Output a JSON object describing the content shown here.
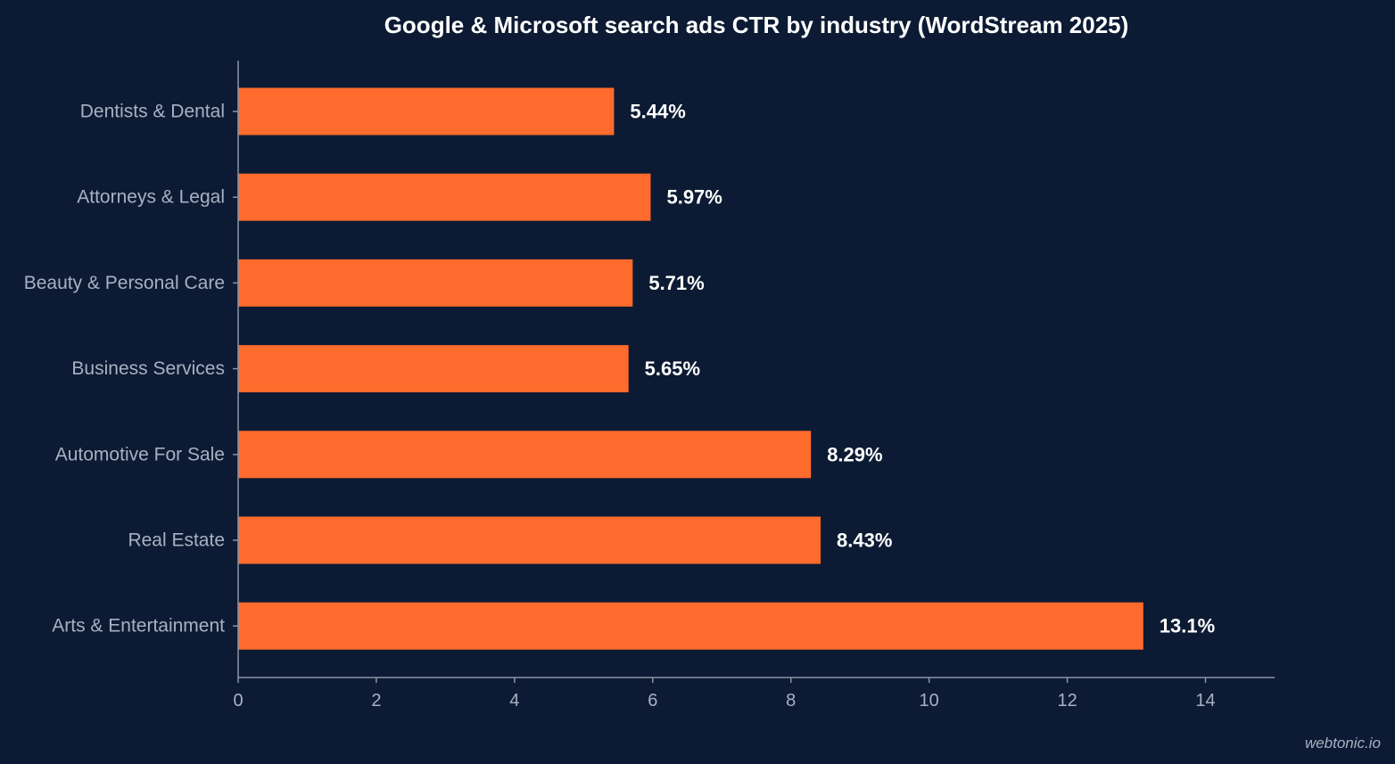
{
  "chart_data": {
    "type": "bar",
    "orientation": "horizontal",
    "title": "Google & Microsoft search ads CTR by industry (WordStream 2025)",
    "xlabel": "",
    "ylabel": "",
    "categories": [
      "Dentists & Dental",
      "Attorneys & Legal",
      "Beauty & Personal Care",
      "Business Services",
      "Automotive For Sale",
      "Real Estate",
      "Arts & Entertainment"
    ],
    "values": [
      5.44,
      5.97,
      5.71,
      5.65,
      8.29,
      8.43,
      13.1
    ],
    "value_labels": [
      "5.44%",
      "5.97%",
      "5.71%",
      "5.65%",
      "8.29%",
      "8.43%",
      "13.1%"
    ],
    "xlim": [
      0,
      15
    ],
    "x_ticks": [
      0,
      2,
      4,
      6,
      8,
      10,
      12,
      14
    ],
    "grid": false,
    "legend": "none",
    "bar_color": "#ff6b2c",
    "background_color": "#0c1b33",
    "axis_color": "#8a94a6"
  },
  "watermark": "webtonic.io"
}
